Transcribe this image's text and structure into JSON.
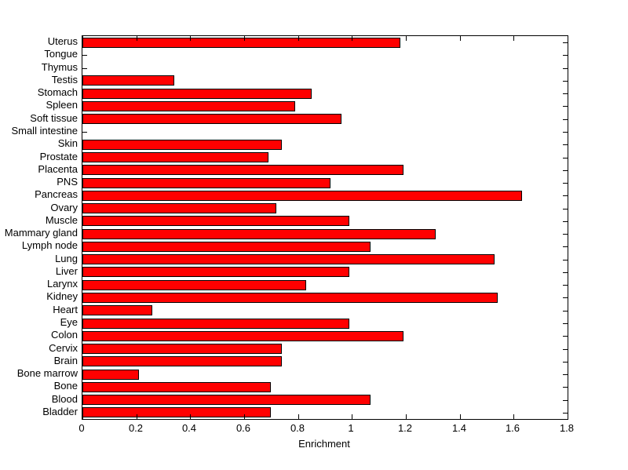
{
  "chart_data": {
    "type": "bar",
    "orientation": "horizontal",
    "title": "",
    "xlabel": "Enrichment",
    "ylabel": "",
    "xlim": [
      0,
      1.8
    ],
    "xticks": [
      0,
      0.2,
      0.4,
      0.6,
      0.8,
      1,
      1.2,
      1.4,
      1.6,
      1.8
    ],
    "xtick_labels": [
      "0",
      "0.2",
      "0.4",
      "0.6",
      "0.8",
      "1",
      "1.2",
      "1.4",
      "1.6",
      "1.8"
    ],
    "grid": false,
    "legend": null,
    "bar_color": "#ff0000",
    "bar_border_color": "#000000",
    "categories": [
      "Uterus",
      "Tongue",
      "Thymus",
      "Testis",
      "Stomach",
      "Spleen",
      "Soft tissue",
      "Small intestine",
      "Skin",
      "Prostate",
      "Placenta",
      "PNS",
      "Pancreas",
      "Ovary",
      "Muscle",
      "Mammary gland",
      "Lymph node",
      "Lung",
      "Liver",
      "Larynx",
      "Kidney",
      "Heart",
      "Eye",
      "Colon",
      "Cervix",
      "Brain",
      "Bone marrow",
      "Bone",
      "Blood",
      "Bladder"
    ],
    "values": [
      1.18,
      0,
      0,
      0.34,
      0.85,
      0.79,
      0.96,
      0,
      0.74,
      0.69,
      1.19,
      0.92,
      1.63,
      0.72,
      0.99,
      1.31,
      1.07,
      1.53,
      0.99,
      0.83,
      1.54,
      0.26,
      0.99,
      1.19,
      0.74,
      0.74,
      0.21,
      0.7,
      1.07,
      0.7
    ]
  }
}
